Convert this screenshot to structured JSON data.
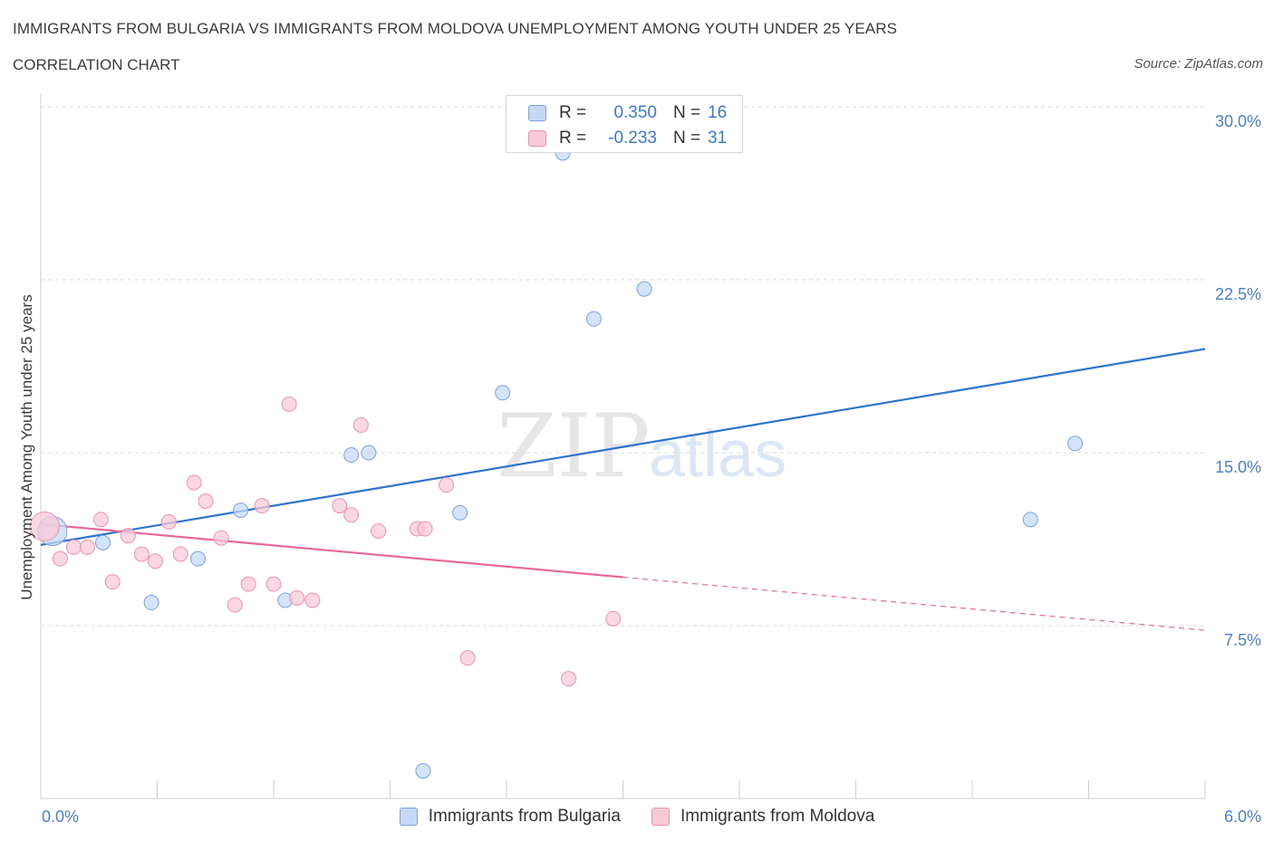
{
  "header": {
    "title": "IMMIGRANTS FROM BULGARIA VS IMMIGRANTS FROM MOLDOVA UNEMPLOYMENT AMONG YOUTH UNDER 25 YEARS",
    "subtitle": "CORRELATION CHART",
    "source": "Source: ZipAtlas.com"
  },
  "watermark": {
    "zip": "ZIP",
    "atlas": "atlas"
  },
  "legend_top": {
    "rows": [
      {
        "r_label": "R =",
        "r_value": "0.350",
        "n_label": "N =",
        "n_value": "16"
      },
      {
        "r_label": "R =",
        "r_value": "-0.233",
        "n_label": "N =",
        "n_value": "31"
      }
    ]
  },
  "colors": {
    "bulgaria_fill": "#c5d9f5",
    "bulgaria_stroke": "#7aa3e0",
    "bulgaria_line": "#2f73d0",
    "moldova_fill": "#f8cad8",
    "moldova_stroke": "#eb93b0",
    "moldova_line": "#e8679a",
    "tick_text": "#4a7fcf",
    "grid": "#d9d9d9"
  },
  "chart_data": {
    "type": "scatter",
    "title": "IMMIGRANTS FROM BULGARIA VS IMMIGRANTS FROM MOLDOVA UNEMPLOYMENT AMONG YOUTH UNDER 25 YEARS",
    "xlabel": "",
    "ylabel": "Unemployment Among Youth under 25 years",
    "xlim": [
      0,
      6
    ],
    "ylim": [
      0,
      30
    ],
    "x_tick_labels": [
      "0.0%",
      "6.0%"
    ],
    "y_ticks": [
      7.5,
      15,
      22.5,
      30
    ],
    "y_tick_labels": [
      "7.5%",
      "15.0%",
      "22.5%",
      "30.0%"
    ],
    "grid": true,
    "legend_position": "bottom",
    "series": [
      {
        "name": "Immigrants from Bulgaria",
        "color": "#2f73d0",
        "points": [
          {
            "x": 0.06,
            "y": 11.6,
            "big": true
          },
          {
            "x": 0.32,
            "y": 11.1
          },
          {
            "x": 0.57,
            "y": 8.5
          },
          {
            "x": 0.81,
            "y": 10.4
          },
          {
            "x": 1.03,
            "y": 12.5
          },
          {
            "x": 1.26,
            "y": 8.6
          },
          {
            "x": 1.6,
            "y": 14.9
          },
          {
            "x": 1.69,
            "y": 15.0
          },
          {
            "x": 1.97,
            "y": 1.2
          },
          {
            "x": 2.16,
            "y": 12.4
          },
          {
            "x": 2.38,
            "y": 17.6
          },
          {
            "x": 2.69,
            "y": 28.0
          },
          {
            "x": 2.85,
            "y": 20.8
          },
          {
            "x": 3.11,
            "y": 22.1
          },
          {
            "x": 5.1,
            "y": 12.1
          },
          {
            "x": 5.33,
            "y": 15.4
          }
        ],
        "trend": {
          "x": [
            0,
            6
          ],
          "y": [
            11.0,
            19.5
          ]
        }
      },
      {
        "name": "Immigrants from Moldova",
        "color": "#e8679a",
        "points": [
          {
            "x": 0.02,
            "y": 11.8,
            "big": true
          },
          {
            "x": 0.1,
            "y": 10.4
          },
          {
            "x": 0.17,
            "y": 10.9
          },
          {
            "x": 0.24,
            "y": 10.9
          },
          {
            "x": 0.31,
            "y": 12.1
          },
          {
            "x": 0.37,
            "y": 9.4
          },
          {
            "x": 0.45,
            "y": 11.4
          },
          {
            "x": 0.52,
            "y": 10.6
          },
          {
            "x": 0.59,
            "y": 10.3
          },
          {
            "x": 0.66,
            "y": 12.0
          },
          {
            "x": 0.72,
            "y": 10.6
          },
          {
            "x": 0.79,
            "y": 13.7
          },
          {
            "x": 0.85,
            "y": 12.9
          },
          {
            "x": 0.93,
            "y": 11.3
          },
          {
            "x": 1.0,
            "y": 8.4
          },
          {
            "x": 1.07,
            "y": 9.3
          },
          {
            "x": 1.14,
            "y": 12.7
          },
          {
            "x": 1.2,
            "y": 9.3
          },
          {
            "x": 1.28,
            "y": 17.1
          },
          {
            "x": 1.32,
            "y": 8.7
          },
          {
            "x": 1.4,
            "y": 8.6
          },
          {
            "x": 1.54,
            "y": 12.7
          },
          {
            "x": 1.6,
            "y": 12.3
          },
          {
            "x": 1.65,
            "y": 16.2
          },
          {
            "x": 1.74,
            "y": 11.6
          },
          {
            "x": 1.94,
            "y": 11.7
          },
          {
            "x": 1.98,
            "y": 11.7
          },
          {
            "x": 2.09,
            "y": 13.6
          },
          {
            "x": 2.2,
            "y": 6.1
          },
          {
            "x": 2.72,
            "y": 5.2
          },
          {
            "x": 2.95,
            "y": 7.8
          }
        ],
        "trend": {
          "x": [
            0,
            3.0
          ],
          "y": [
            11.9,
            9.6
          ]
        },
        "trend_dashed": {
          "x": [
            3.0,
            6
          ],
          "y": [
            9.6,
            7.3
          ]
        }
      }
    ]
  },
  "bottom_legend": {
    "items": [
      {
        "label": "Immigrants from Bulgaria"
      },
      {
        "label": "Immigrants from Moldova"
      }
    ]
  }
}
